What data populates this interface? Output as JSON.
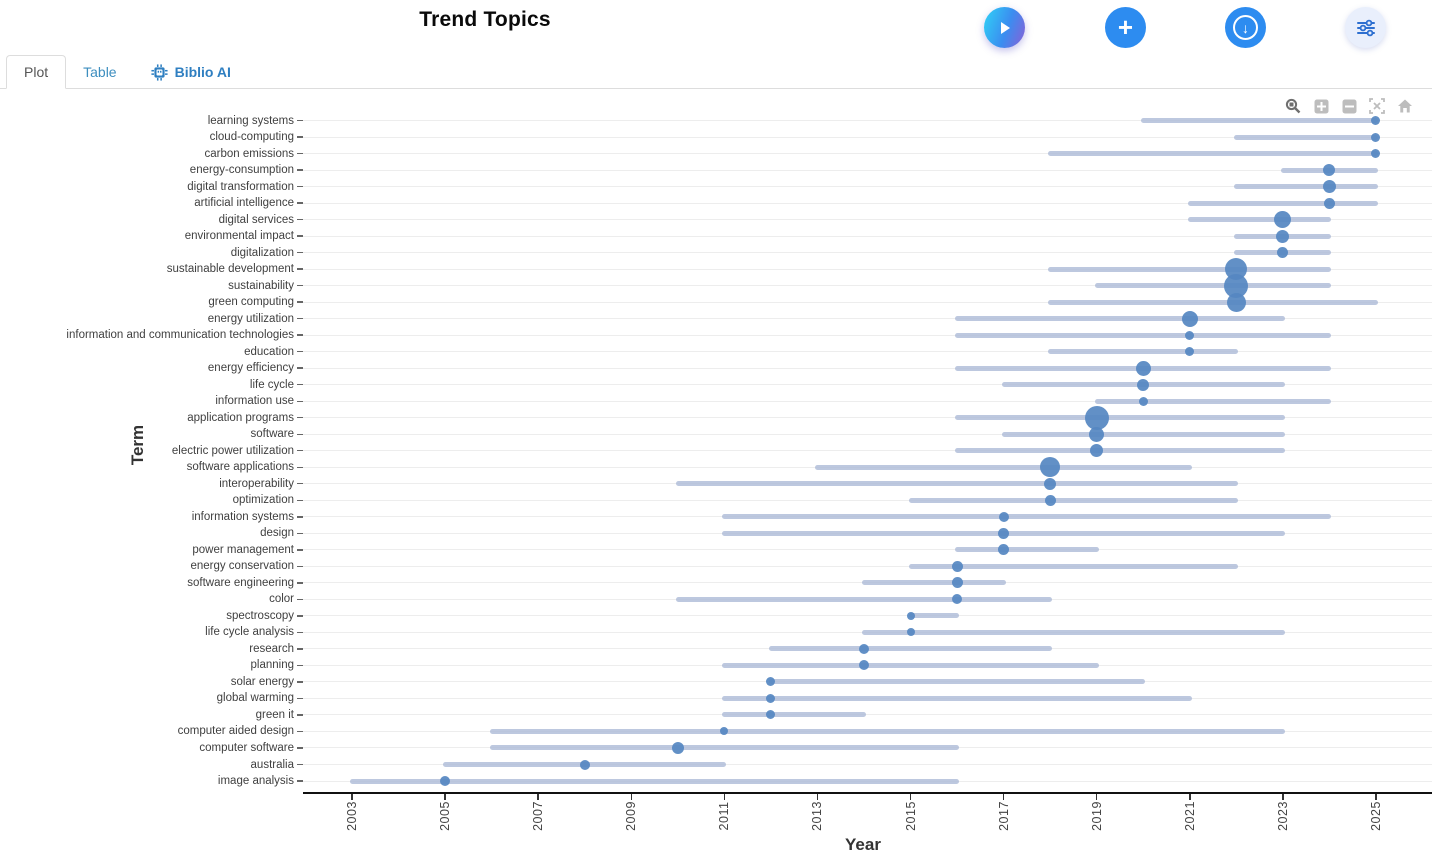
{
  "header": {
    "title": "Trend Topics",
    "buttons": [
      {
        "name": "run-analysis",
        "icon": "play-icon"
      },
      {
        "name": "add",
        "icon": "plus-icon"
      },
      {
        "name": "export-download",
        "icon": "download-circle-icon"
      },
      {
        "name": "filters",
        "icon": "sliders-icon"
      }
    ]
  },
  "tabs": [
    {
      "label": "Plot",
      "active": true
    },
    {
      "label": "Table",
      "active": false
    },
    {
      "label": "Biblio AI",
      "active": false,
      "icon": "robot-chip-icon"
    }
  ],
  "modebar": [
    "zoom-icon",
    "zoom-in-icon",
    "zoom-out-icon",
    "autoscale-icon",
    "reset-axes-icon"
  ],
  "colors": {
    "dot": "#5587c1",
    "range_line": "#adbad7",
    "grid": "#ededed",
    "axis": "#111111",
    "tick_label": "#444444",
    "tab_blue": "#3d8ebf",
    "button_blue": "#2d8cf0",
    "play_gradient_start": "#2fd3f6",
    "play_gradient_end": "#8a5fd6"
  },
  "chart_data": {
    "type": "scatter",
    "subtype": "trend-topics-range-bubble",
    "title": "Trend Topics",
    "xlabel": "Year",
    "ylabel": "Term",
    "xlim": [
      2002,
      2026
    ],
    "x_ticks": [
      2003,
      2005,
      2007,
      2009,
      2011,
      2013,
      2015,
      2017,
      2019,
      2021,
      2023,
      2025
    ],
    "grid": "horizontal-faint",
    "legend": "none",
    "terms": [
      {
        "term": "learning systems",
        "year_start": 2020,
        "year_peak": 2025,
        "year_end": 2025,
        "size": 9
      },
      {
        "term": "cloud-computing",
        "year_start": 2022,
        "year_peak": 2025,
        "year_end": 2025,
        "size": 9
      },
      {
        "term": "carbon emissions",
        "year_start": 2018,
        "year_peak": 2025,
        "year_end": 2025,
        "size": 9
      },
      {
        "term": "energy-consumption",
        "year_start": 2023,
        "year_peak": 2024,
        "year_end": 2025,
        "size": 12
      },
      {
        "term": "digital transformation",
        "year_start": 2022,
        "year_peak": 2024,
        "year_end": 2025,
        "size": 13
      },
      {
        "term": "artificial intelligence",
        "year_start": 2021,
        "year_peak": 2024,
        "year_end": 2025,
        "size": 11
      },
      {
        "term": "digital services",
        "year_start": 2021,
        "year_peak": 2023,
        "year_end": 2024,
        "size": 17
      },
      {
        "term": "environmental impact",
        "year_start": 2022,
        "year_peak": 2023,
        "year_end": 2024,
        "size": 13
      },
      {
        "term": "digitalization",
        "year_start": 2022,
        "year_peak": 2023,
        "year_end": 2024,
        "size": 11
      },
      {
        "term": "sustainable development",
        "year_start": 2018,
        "year_peak": 2022,
        "year_end": 2024,
        "size": 22
      },
      {
        "term": "sustainability",
        "year_start": 2019,
        "year_peak": 2022,
        "year_end": 2024,
        "size": 24
      },
      {
        "term": "green computing",
        "year_start": 2018,
        "year_peak": 2022,
        "year_end": 2025,
        "size": 19
      },
      {
        "term": "energy utilization",
        "year_start": 2016,
        "year_peak": 2021,
        "year_end": 2023,
        "size": 16
      },
      {
        "term": "information and communication technologies",
        "year_start": 2016,
        "year_peak": 2021,
        "year_end": 2024,
        "size": 9
      },
      {
        "term": "education",
        "year_start": 2018,
        "year_peak": 2021,
        "year_end": 2022,
        "size": 9
      },
      {
        "term": "energy efficiency",
        "year_start": 2016,
        "year_peak": 2020,
        "year_end": 2024,
        "size": 15
      },
      {
        "term": "life cycle",
        "year_start": 2017,
        "year_peak": 2020,
        "year_end": 2023,
        "size": 12
      },
      {
        "term": "information use",
        "year_start": 2019,
        "year_peak": 2020,
        "year_end": 2024,
        "size": 9
      },
      {
        "term": "application programs",
        "year_start": 2016,
        "year_peak": 2019,
        "year_end": 2023,
        "size": 24
      },
      {
        "term": "software",
        "year_start": 2017,
        "year_peak": 2019,
        "year_end": 2023,
        "size": 15
      },
      {
        "term": "electric power utilization",
        "year_start": 2016,
        "year_peak": 2019,
        "year_end": 2023,
        "size": 13
      },
      {
        "term": "software applications",
        "year_start": 2013,
        "year_peak": 2018,
        "year_end": 2021,
        "size": 20
      },
      {
        "term": "interoperability",
        "year_start": 2010,
        "year_peak": 2018,
        "year_end": 2022,
        "size": 12
      },
      {
        "term": "optimization",
        "year_start": 2015,
        "year_peak": 2018,
        "year_end": 2022,
        "size": 11
      },
      {
        "term": "information systems",
        "year_start": 2011,
        "year_peak": 2017,
        "year_end": 2024,
        "size": 10
      },
      {
        "term": "design",
        "year_start": 2011,
        "year_peak": 2017,
        "year_end": 2023,
        "size": 11
      },
      {
        "term": "power management",
        "year_start": 2016,
        "year_peak": 2017,
        "year_end": 2019,
        "size": 11
      },
      {
        "term": "energy conservation",
        "year_start": 2015,
        "year_peak": 2016,
        "year_end": 2022,
        "size": 11
      },
      {
        "term": "software engineering",
        "year_start": 2014,
        "year_peak": 2016,
        "year_end": 2017,
        "size": 11
      },
      {
        "term": "color",
        "year_start": 2010,
        "year_peak": 2016,
        "year_end": 2018,
        "size": 10
      },
      {
        "term": "spectroscopy",
        "year_start": 2015,
        "year_peak": 2015,
        "year_end": 2016,
        "size": 8
      },
      {
        "term": "life cycle analysis",
        "year_start": 2014,
        "year_peak": 2015,
        "year_end": 2023,
        "size": 8
      },
      {
        "term": "research",
        "year_start": 2012,
        "year_peak": 2014,
        "year_end": 2018,
        "size": 10
      },
      {
        "term": "planning",
        "year_start": 2011,
        "year_peak": 2014,
        "year_end": 2019,
        "size": 10
      },
      {
        "term": "solar energy",
        "year_start": 2012,
        "year_peak": 2012,
        "year_end": 2020,
        "size": 9
      },
      {
        "term": "global warming",
        "year_start": 2011,
        "year_peak": 2012,
        "year_end": 2021,
        "size": 9
      },
      {
        "term": "green it",
        "year_start": 2011,
        "year_peak": 2012,
        "year_end": 2014,
        "size": 9
      },
      {
        "term": "computer aided design",
        "year_start": 2006,
        "year_peak": 2011,
        "year_end": 2023,
        "size": 8
      },
      {
        "term": "computer software",
        "year_start": 2006,
        "year_peak": 2010,
        "year_end": 2016,
        "size": 12
      },
      {
        "term": "australia",
        "year_start": 2005,
        "year_peak": 2008,
        "year_end": 2011,
        "size": 10
      },
      {
        "term": "image analysis",
        "year_start": 2003,
        "year_peak": 2005,
        "year_end": 2016,
        "size": 10
      }
    ]
  }
}
